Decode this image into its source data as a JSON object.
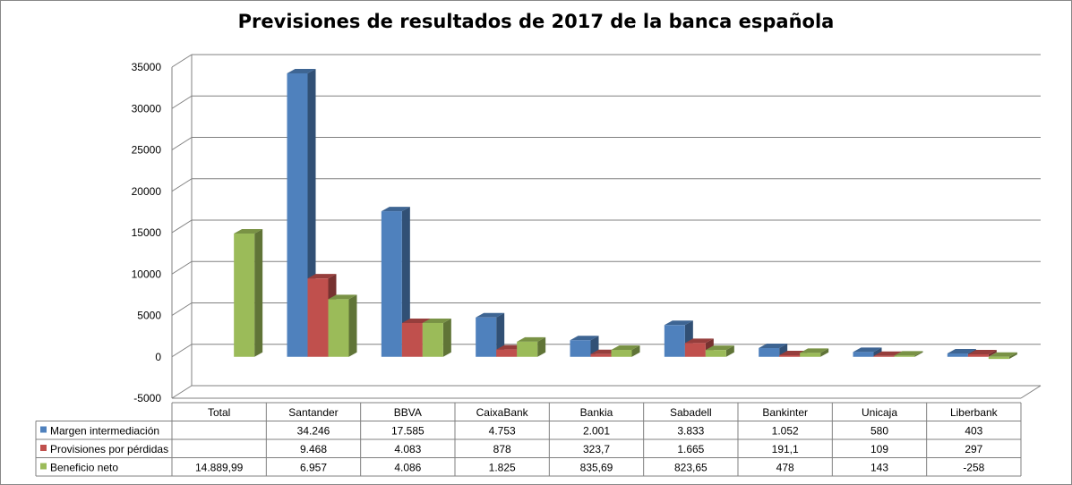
{
  "chart_data": {
    "type": "bar",
    "title": "Previsiones de resultados de 2017 de la banca española",
    "categories": [
      "Total",
      "Santander",
      "BBVA",
      "CaixaBank",
      "Bankia",
      "Sabadell",
      "Bankinter",
      "Unicaja",
      "Liberbank"
    ],
    "ylim": [
      -5000,
      35000
    ],
    "yticks": [
      "-5000",
      "0",
      "5000",
      "10000",
      "15000",
      "20000",
      "25000",
      "30000",
      "35000"
    ],
    "grid": true,
    "legend_placement": "data-table-left",
    "series": [
      {
        "name": "Margen intermediación",
        "color": "#4F81BD",
        "values": [
          null,
          34246,
          17585,
          4753,
          2001,
          3833,
          1052,
          580,
          403
        ],
        "labels": [
          "",
          "34.246",
          "17.585",
          "4.753",
          "2.001",
          "3.833",
          "1.052",
          "580",
          "403"
        ]
      },
      {
        "name": "Provisiones por pérdidas",
        "color": "#C0504D",
        "values": [
          null,
          9468,
          4083,
          878,
          323.7,
          1665,
          191.1,
          109,
          297
        ],
        "labels": [
          "",
          "9.468",
          "4.083",
          "878",
          "323,7",
          "1.665",
          "191,1",
          "109",
          "297"
        ]
      },
      {
        "name": "Beneficio neto",
        "color": "#9BBB59",
        "values": [
          14889.99,
          6957,
          4086,
          1825,
          835.69,
          823.65,
          478,
          143,
          -258
        ],
        "labels": [
          "14.889,99",
          "6.957",
          "4.086",
          "1.825",
          "835,69",
          "823,65",
          "478",
          "143",
          "-258"
        ]
      }
    ]
  }
}
